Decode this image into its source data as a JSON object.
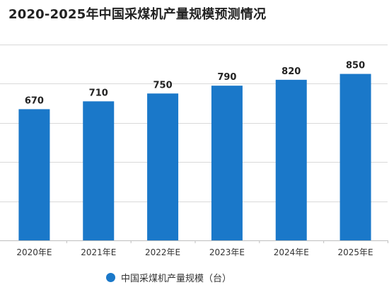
{
  "chart_data": {
    "type": "bar",
    "title": "2020-2025年中国采煤机产量规模预测情况",
    "categories": [
      "2020年E",
      "2021年E",
      "2022年E",
      "2023年E",
      "2024年E",
      "2025年E"
    ],
    "series": [
      {
        "name": "中国采煤机产量规模（台）",
        "values": [
          670,
          710,
          750,
          790,
          820,
          850
        ]
      }
    ],
    "ylim": [
      0,
      1000
    ],
    "grid": true,
    "legend": "bottom-center",
    "bar_color": "#1a78c9",
    "data_labels": true
  }
}
